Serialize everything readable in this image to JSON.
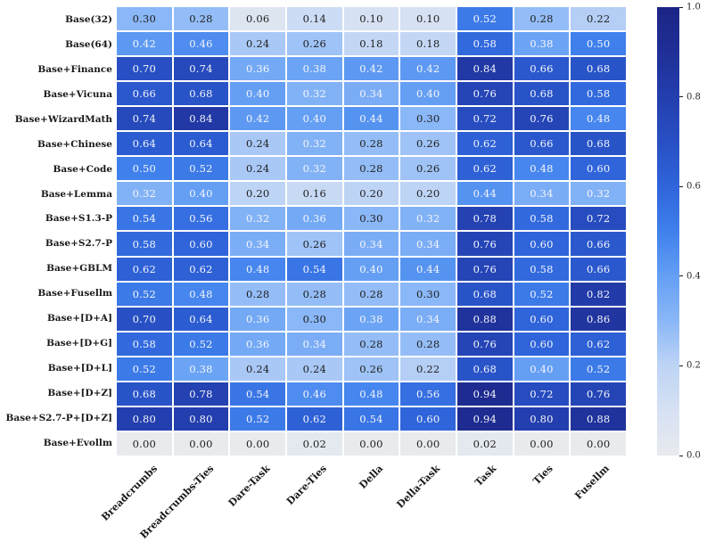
{
  "chart_data": {
    "type": "heatmap",
    "title": "",
    "xlabel": "",
    "ylabel": "",
    "columns": [
      "Breadcrumbs",
      "Breadcrumbs-Ties",
      "Dare-Task",
      "Dare-Ties",
      "Della",
      "Della-Task",
      "Task",
      "Ties",
      "Fusellm"
    ],
    "rows": [
      "Base(32)",
      "Base(64)",
      "Base+Finance",
      "Base+Vicuna",
      "Base+WizardMath",
      "Base+Chinese",
      "Base+Code",
      "Base+Lemma",
      "Base+S1.3-P",
      "Base+S2.7-P",
      "Base+GBLM",
      "Base+Fusellm",
      "Base+[D+A]",
      "Base+[D+G]",
      "Base+[D+L]",
      "Base+[D+Z]",
      "Base+S2.7-P+[D+Z]",
      "Base+Evollm"
    ],
    "values": [
      [
        0.3,
        0.28,
        0.06,
        0.14,
        0.1,
        0.1,
        0.52,
        0.28,
        0.22
      ],
      [
        0.42,
        0.46,
        0.24,
        0.26,
        0.18,
        0.18,
        0.58,
        0.38,
        0.5
      ],
      [
        0.7,
        0.74,
        0.36,
        0.38,
        0.42,
        0.42,
        0.84,
        0.66,
        0.68
      ],
      [
        0.66,
        0.68,
        0.4,
        0.32,
        0.34,
        0.4,
        0.76,
        0.68,
        0.58
      ],
      [
        0.74,
        0.84,
        0.42,
        0.4,
        0.44,
        0.3,
        0.72,
        0.76,
        0.48
      ],
      [
        0.64,
        0.64,
        0.24,
        0.32,
        0.28,
        0.26,
        0.62,
        0.66,
        0.68
      ],
      [
        0.5,
        0.52,
        0.24,
        0.32,
        0.28,
        0.26,
        0.62,
        0.48,
        0.6
      ],
      [
        0.32,
        0.4,
        0.2,
        0.16,
        0.2,
        0.2,
        0.44,
        0.34,
        0.32
      ],
      [
        0.54,
        0.56,
        0.32,
        0.36,
        0.3,
        0.32,
        0.78,
        0.58,
        0.72
      ],
      [
        0.58,
        0.6,
        0.34,
        0.26,
        0.34,
        0.34,
        0.76,
        0.6,
        0.66
      ],
      [
        0.62,
        0.62,
        0.48,
        0.54,
        0.4,
        0.44,
        0.76,
        0.58,
        0.66
      ],
      [
        0.52,
        0.48,
        0.28,
        0.28,
        0.28,
        0.3,
        0.68,
        0.52,
        0.82
      ],
      [
        0.7,
        0.64,
        0.36,
        0.3,
        0.38,
        0.34,
        0.88,
        0.6,
        0.86
      ],
      [
        0.58,
        0.52,
        0.36,
        0.34,
        0.28,
        0.28,
        0.76,
        0.6,
        0.62
      ],
      [
        0.52,
        0.38,
        0.24,
        0.24,
        0.26,
        0.22,
        0.68,
        0.4,
        0.52
      ],
      [
        0.68,
        0.78,
        0.54,
        0.46,
        0.48,
        0.56,
        0.94,
        0.72,
        0.76
      ],
      [
        0.8,
        0.8,
        0.52,
        0.62,
        0.54,
        0.6,
        0.94,
        0.8,
        0.88
      ],
      [
        0.0,
        0.0,
        0.0,
        0.02,
        0.0,
        0.0,
        0.02,
        0.0,
        0.0
      ]
    ],
    "value_format_decimals": 2,
    "colorbar": {
      "min": 0.0,
      "max": 1.0,
      "tick_values": [
        1.0,
        0.8,
        0.6,
        0.4,
        0.2,
        0.0
      ],
      "tick_labels": [
        "1.0",
        "0.8",
        "0.6",
        "0.4",
        "0.2",
        "0.0"
      ],
      "position": "right"
    },
    "colormap_stops": [
      [
        0.0,
        "#e8eaee"
      ],
      [
        0.1,
        "#d6e1f3"
      ],
      [
        0.2,
        "#bed4f5"
      ],
      [
        0.3,
        "#8ab7f7"
      ],
      [
        0.4,
        "#649ff4"
      ],
      [
        0.5,
        "#3f80ec"
      ],
      [
        0.6,
        "#2f64da"
      ],
      [
        0.7,
        "#2850c4"
      ],
      [
        0.8,
        "#233eae"
      ],
      [
        0.9,
        "#1f2f97"
      ],
      [
        1.0,
        "#1c2585"
      ]
    ],
    "text_color_threshold": 0.31,
    "cell_text_dark": "#1f1f1f",
    "cell_text_light": "#f4f6fb",
    "gridline_color": "#ffffff",
    "legend_position": "right",
    "grid": "white cell separators"
  }
}
